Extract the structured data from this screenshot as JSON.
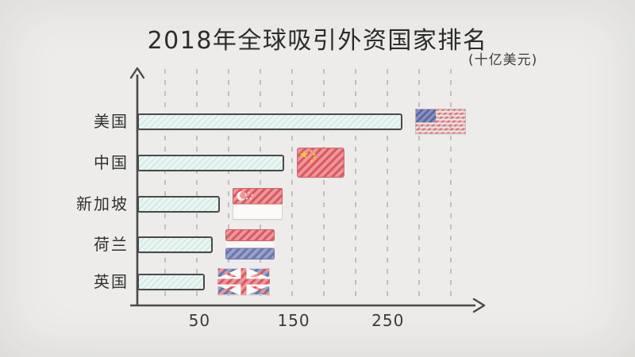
{
  "title": "2018年全球吸引外资国家排名",
  "unit_label": "(十亿美元)",
  "chart_data": {
    "type": "bar",
    "orientation": "horizontal",
    "title": "2018年全球吸引外资国家排名",
    "unit": "十亿美元",
    "categories": [
      "美国",
      "中国",
      "新加坡",
      "荷兰",
      "英国"
    ],
    "category_slugs": [
      "usa",
      "china",
      "singapore",
      "netherlands",
      "uk"
    ],
    "values": [
      265,
      140,
      72,
      64,
      56
    ],
    "xticks": [
      50,
      150,
      250
    ],
    "xlim": [
      0,
      330
    ],
    "grid": "vertical-dashed",
    "legend": "none",
    "bar_markers": [
      "united-states-flag",
      "china-flag",
      "singapore-flag",
      "netherlands-flag",
      "united-kingdom-flag"
    ]
  },
  "colors": {
    "background": "#eceae7",
    "bar_fill": "#e9f6f3",
    "bar_hatch": "#cfe9e2",
    "bar_border": "#4a4a4a",
    "axis": "#4a4a4a",
    "gridline": "#aeadaa",
    "title_text": "#2c2c2c",
    "label_text": "#303030",
    "flag_red": "#ef979b",
    "flag_red_dark": "#d9585f",
    "flag_blue": "#99a2c9",
    "flag_blue_dark": "#6c75ac",
    "star_yellow": "#f2cd39"
  }
}
